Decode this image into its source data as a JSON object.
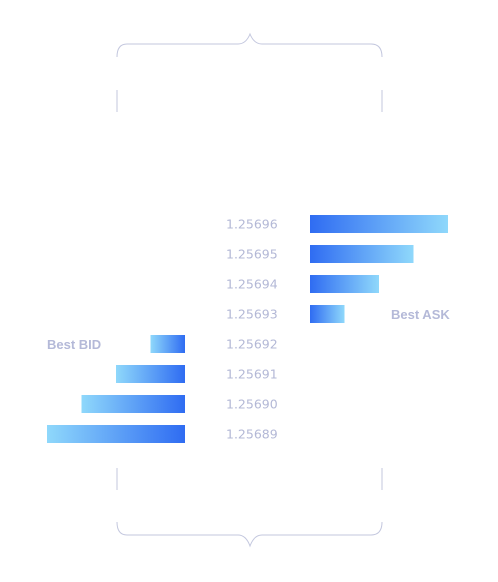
{
  "chart_data": {
    "type": "bar",
    "prices": [
      "1.25696",
      "1.25695",
      "1.25694",
      "1.25693",
      "1.25692",
      "1.25691",
      "1.25690",
      "1.25689"
    ],
    "asks": [
      {
        "price": "1.25696",
        "volume": 4
      },
      {
        "price": "1.25695",
        "volume": 3
      },
      {
        "price": "1.25694",
        "volume": 2
      },
      {
        "price": "1.25693",
        "volume": 1
      }
    ],
    "bids": [
      {
        "price": "1.25692",
        "volume": 1
      },
      {
        "price": "1.25691",
        "volume": 2
      },
      {
        "price": "1.25690",
        "volume": 3
      },
      {
        "price": "1.25689",
        "volume": 4
      }
    ],
    "best_ask_label": "Best ASK",
    "best_bid_label": "Best BID",
    "colors": {
      "bar_dark": "#2f6cf2",
      "bar_light": "#8fd8fb",
      "text": "#b3b8d6",
      "bracket": "#c3c7de"
    }
  }
}
